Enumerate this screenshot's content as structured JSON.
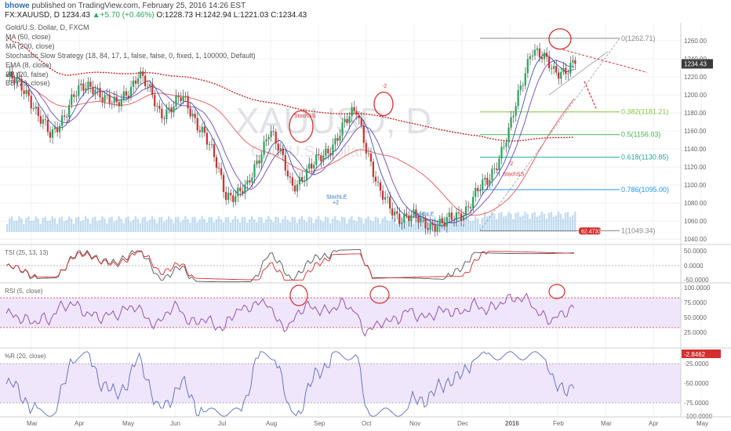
{
  "header": {
    "user": "bhowe",
    "published": " published on TradingView.com, February 25, 2016 14:26 EST",
    "symbol": "FX:XAUUSD, D",
    "last": "1234.43",
    "change_arrow": "▲",
    "change": "+5.70 (+0.46%)",
    "open": "O:1228.73",
    "high": "H:1242.94",
    "low": "L:1221.03",
    "close": "C:1234.43"
  },
  "legend": {
    "title": "Gold/U.S. Dollar, D, FXCM",
    "ma50": "MA (50, close)",
    "ma200": "MA (200, close)",
    "strategy": "Stochastic Slow Strategy (18, 84, 17, 1, false, false, 0, fixed, 1, 100000, Default)",
    "ema8": "EMA (8, close)",
    "bb": "BB (20, false)",
    "bb2": "BB (20, close)"
  },
  "watermark": {
    "symbol": "XAUUSD, D",
    "name": "Gold/U.S. Dollar"
  },
  "price_axis": {
    "ticks": [
      "1260.00",
      "1240.00",
      "1220.00",
      "1200.00",
      "1180.00",
      "1160.00",
      "1140.00",
      "1120.00",
      "1100.00",
      "1080.00",
      "1060.00",
      "1040.00"
    ],
    "last_price": "1234.43",
    "colors": {
      "up": "#26a65b",
      "down": "#d32f2f",
      "last_price_bg": "#3a3a3a"
    }
  },
  "fibonacci": [
    {
      "label": "0(1262.71)",
      "color": "#888888"
    },
    {
      "label": "0.382(1181.21)",
      "color": "#8bc34a"
    },
    {
      "label": "0.5(1156.03)",
      "color": "#4caf50"
    },
    {
      "label": "0.618(1130.85)",
      "color": "#26a69a"
    },
    {
      "label": "0.786(1095.00)",
      "color": "#2196f3"
    },
    {
      "label": "1(1049.34)",
      "color": "#888888"
    }
  ],
  "signals": {
    "short1": "StochSS",
    "short2": "-2",
    "short3": "StochSS",
    "short4": "-2",
    "short5": "StochSS",
    "long1": "StochLE",
    "long1b": "+2",
    "long2": "StochLE",
    "long2b": "+2",
    "position": "62.4733"
  },
  "tsi": {
    "label": "TSI (25, 13, 13)",
    "ticks": [
      "50.0000",
      "0.0000",
      "-50.0000"
    ]
  },
  "rsi": {
    "label": "RSI (5, close)",
    "ticks": [
      "100.0000",
      "75.0000",
      "50.0000",
      "25.0000"
    ]
  },
  "williams": {
    "label": "%R (20, close)",
    "value": "-2.8462",
    "ticks": [
      "-25.0000",
      "-50.0000",
      "-75.0000",
      "-100.0000"
    ]
  },
  "time_axis": {
    "months": [
      "Mar",
      "Apr",
      "May",
      "Jun",
      "Jul",
      "Aug",
      "Sep",
      "Oct",
      "Nov",
      "Dec",
      "2016",
      "Feb",
      "Mar",
      "Apr",
      "May"
    ]
  },
  "chart_data": {
    "type": "line",
    "title": "Gold/U.S. Dollar, D, FXCM",
    "ylim": [
      1035,
      1280
    ],
    "price_path": [
      [
        "Mar",
        1220
      ],
      [
        "Mar",
        1200
      ],
      [
        "Mar",
        1150
      ],
      [
        "Apr",
        1200
      ],
      [
        "Apr",
        1210
      ],
      [
        "May",
        1185
      ],
      [
        "May",
        1225
      ],
      [
        "Jun",
        1180
      ],
      [
        "Jun",
        1195
      ],
      [
        "Jul",
        1160
      ],
      [
        "Jul",
        1090
      ],
      [
        "Aug",
        1095
      ],
      [
        "Aug",
        1165
      ],
      [
        "Sep",
        1100
      ],
      [
        "Sep",
        1120
      ],
      [
        "Oct",
        1150
      ],
      [
        "Oct",
        1185
      ],
      [
        "Nov",
        1090
      ],
      [
        "Nov",
        1065
      ],
      [
        "Dec",
        1060
      ],
      [
        "Dec",
        1055
      ],
      [
        "2016",
        1075
      ],
      [
        "2016",
        1105
      ],
      [
        "Feb",
        1160
      ],
      [
        "Feb",
        1255
      ],
      [
        "Feb",
        1225
      ],
      [
        "Feb",
        1234.43
      ]
    ],
    "fib_levels": [
      1262.71,
      1181.21,
      1156.03,
      1130.85,
      1095.0,
      1049.34
    ],
    "last": 1234.43,
    "subpanes": [
      "TSI (25, 13, 13)",
      "RSI (5, close)",
      "%R (20, close)"
    ]
  }
}
